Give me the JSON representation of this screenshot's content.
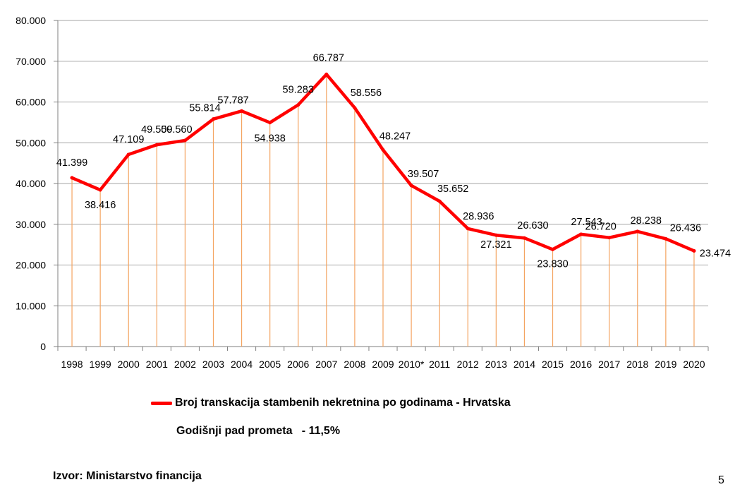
{
  "chart_data": {
    "type": "line",
    "title": "",
    "xlabel": "",
    "ylabel": "",
    "ylim": [
      0,
      80000
    ],
    "yticks": [
      0,
      10000,
      20000,
      30000,
      40000,
      50000,
      60000,
      70000,
      80000
    ],
    "ytick_labels": [
      "0",
      "10.000",
      "20.000",
      "30.000",
      "40.000",
      "50.000",
      "60.000",
      "70.000",
      "80.000"
    ],
    "grid": true,
    "categories": [
      "1998",
      "1999",
      "2000",
      "2001",
      "2002",
      "2003",
      "2004",
      "2005",
      "2006",
      "2007",
      "2008",
      "2009",
      "2010*",
      "2011",
      "2012",
      "2013",
      "2014",
      "2015",
      "2016",
      "2017",
      "2018",
      "2019",
      "2020"
    ],
    "series": [
      {
        "name": "Broj transkacija stambenih nekretnina po godinama - Hrvatska",
        "color": "#ff0000",
        "values": [
          41399,
          38416,
          47109,
          49509,
          50560,
          55814,
          57787,
          54938,
          59283,
          66787,
          58556,
          48247,
          39507,
          35652,
          28936,
          27321,
          26630,
          23830,
          27543,
          26720,
          28238,
          26436,
          23474
        ],
        "data_labels": [
          "41.399",
          "38.416",
          "47.109",
          "49.509",
          "50.560",
          "55.814",
          "57.787",
          "54.938",
          "59.283",
          "66.787",
          "58.556",
          "48.247",
          "39.507",
          "35.652",
          "28.936",
          "27.321",
          "26.630",
          "23.830",
          "27.543",
          "26.720",
          "28.238",
          "26.436",
          "23.474"
        ]
      }
    ],
    "drop_line_color": "#f4a460",
    "grid_color": "#a6a6a6"
  },
  "legend": {
    "label": "Broj transkacija stambenih nekretnina po godinama - Hrvatska"
  },
  "note": {
    "text": "Godišnji pad prometa   - 11,5%"
  },
  "source": {
    "text": "Izvor: Ministarstvo financija"
  },
  "page_number": "5"
}
